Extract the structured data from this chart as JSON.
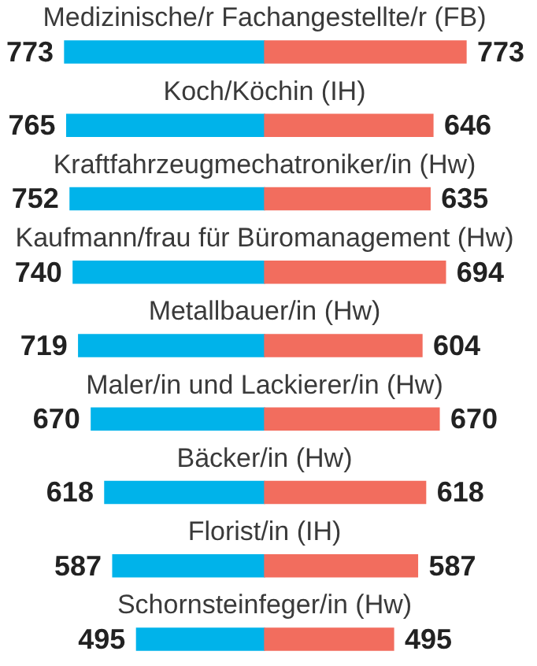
{
  "chart_data": [
    {
      "type": "bar",
      "orientation": "horizontal",
      "tick_labels": "y",
      "data_labels": true,
      "xlim": [
        773,
        0
      ],
      "categories": [
        "Medizinische/r Fachangestellte/r (FB)",
        "Koch/Köchin (IH)",
        "Kraftfahrzeugmechatroniker/in (Hw)",
        "Kaufmann/frau für Büromanagement (Hw)",
        "Metallbauer/in (Hw)",
        "Maler/in und Lackierer/in (Hw)",
        "Bäcker/in (Hw)",
        "Florist/in (IH)",
        "Schornsteinfeger/in (Hw)"
      ],
      "series": [
        {
          "color": "#00b3ea",
          "values": [
            773,
            765,
            752,
            740,
            719,
            670,
            618,
            587,
            495
          ]
        }
      ]
    },
    {
      "type": "bar",
      "orientation": "horizontal",
      "tick_labels": false,
      "data_labels": true,
      "xlim": [
        0,
        773
      ],
      "categories": [
        null,
        null,
        null,
        null,
        null,
        null,
        null,
        null,
        null
      ],
      "series": [
        {
          "color": "#f26d5e",
          "values": [
            773,
            646,
            635,
            694,
            604,
            670,
            618,
            587,
            495
          ]
        }
      ]
    }
  ]
}
